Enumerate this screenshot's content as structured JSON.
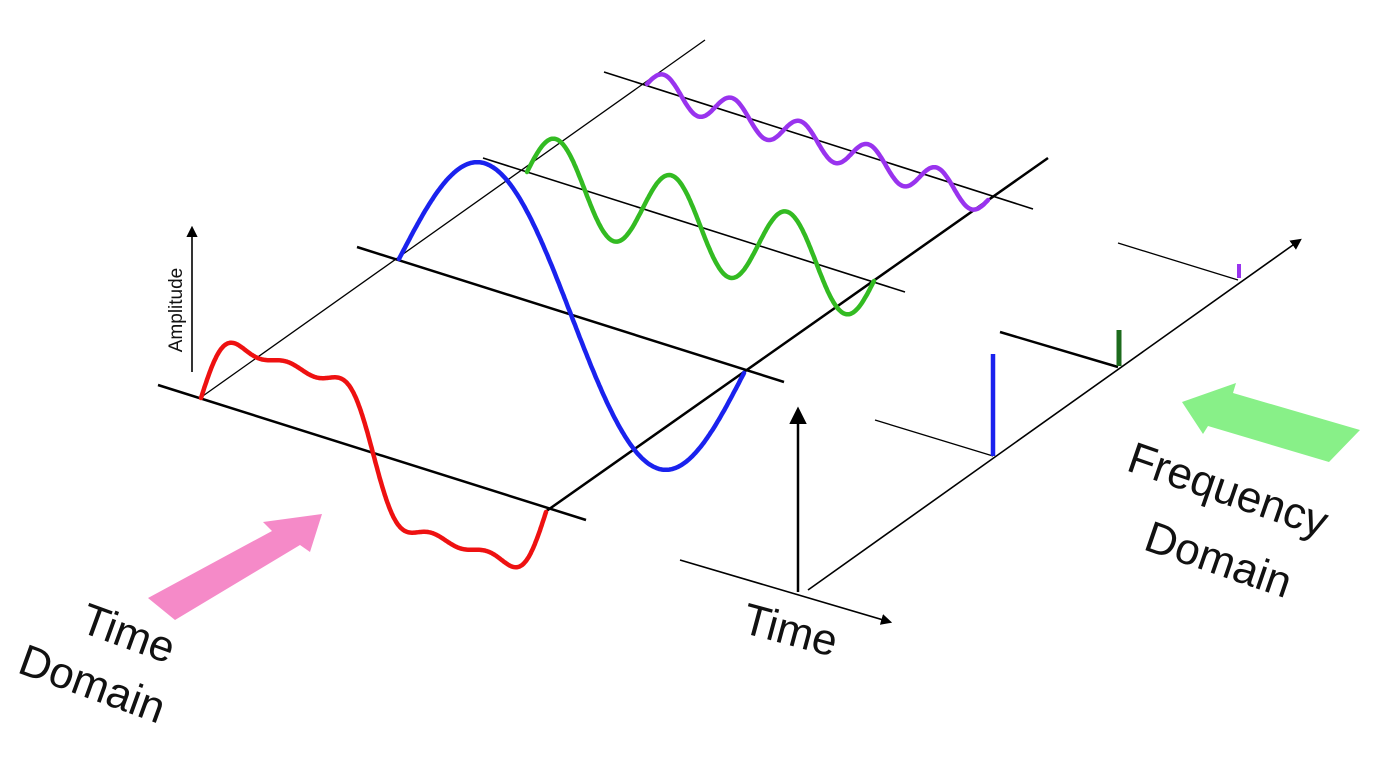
{
  "labels": {
    "amplitude": "Amplitude",
    "time_axis": "Time",
    "time_domain_line1": "Time",
    "time_domain_line2": "Domain",
    "frequency_domain_line1": "Frequency",
    "frequency_domain_line2": "Domain"
  },
  "colors": {
    "composite": "#ee1111",
    "component_1": "#1a22ee",
    "component_2": "#33bb22",
    "component_3": "#9933ee",
    "spike_1": "#1a22ee",
    "spike_2": "#1d6b1d",
    "spike_3": "#9933ee",
    "time_domain_arrow": "#f58ac8",
    "frequency_domain_arrow": "#88f088",
    "axis": "#000000"
  }
}
